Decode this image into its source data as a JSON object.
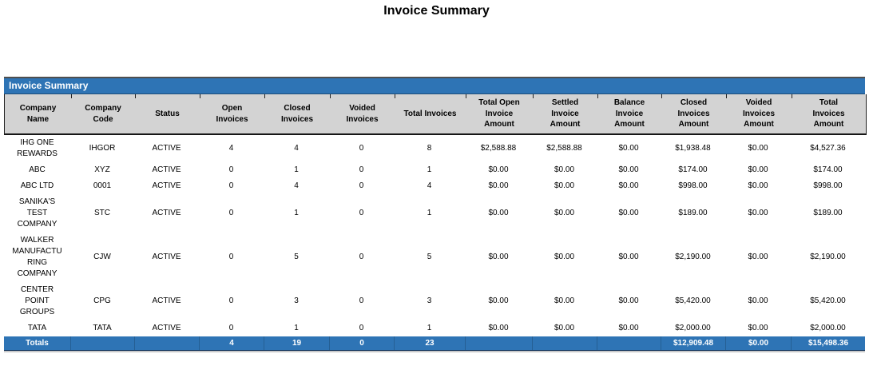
{
  "page_title": "Invoice Summary",
  "colors": {
    "accent_blue": "#2E74B5",
    "header_gray": "#D3D3D3",
    "totals_text": "#FFFFFF"
  },
  "table": {
    "section_title": "Invoice Summary",
    "columns": [
      "Company Name",
      "Company Code",
      "Status",
      "Open Invoices",
      "Closed Invoices",
      "Voided Invoices",
      "Total Invoices",
      "Total Open Invoice Amount",
      "Settled Invoice Amount",
      "Balance Invoice Amount",
      "Closed Invoices Amount",
      "Voided Invoices Amount",
      "Total Invoices Amount"
    ],
    "rows": [
      [
        "IHG ONE REWARDS",
        "IHGOR",
        "ACTIVE",
        "4",
        "4",
        "0",
        "8",
        "$2,588.88",
        "$2,588.88",
        "$0.00",
        "$1,938.48",
        "$0.00",
        "$4,527.36"
      ],
      [
        "ABC",
        "XYZ",
        "ACTIVE",
        "0",
        "1",
        "0",
        "1",
        "$0.00",
        "$0.00",
        "$0.00",
        "$174.00",
        "$0.00",
        "$174.00"
      ],
      [
        "ABC LTD",
        "0001",
        "ACTIVE",
        "0",
        "4",
        "0",
        "4",
        "$0.00",
        "$0.00",
        "$0.00",
        "$998.00",
        "$0.00",
        "$998.00"
      ],
      [
        "SANIKA'S TEST COMPANY",
        "STC",
        "ACTIVE",
        "0",
        "1",
        "0",
        "1",
        "$0.00",
        "$0.00",
        "$0.00",
        "$189.00",
        "$0.00",
        "$189.00"
      ],
      [
        "WALKER MANUFACTURING COMPANY",
        "CJW",
        "ACTIVE",
        "0",
        "5",
        "0",
        "5",
        "$0.00",
        "$0.00",
        "$0.00",
        "$2,190.00",
        "$0.00",
        "$2,190.00"
      ],
      [
        "CENTER POINT GROUPS",
        "CPG",
        "ACTIVE",
        "0",
        "3",
        "0",
        "3",
        "$0.00",
        "$0.00",
        "$0.00",
        "$5,420.00",
        "$0.00",
        "$5,420.00"
      ],
      [
        "TATA",
        "TATA",
        "ACTIVE",
        "0",
        "1",
        "0",
        "1",
        "$0.00",
        "$0.00",
        "$0.00",
        "$2,000.00",
        "$0.00",
        "$2,000.00"
      ]
    ],
    "totals": {
      "cells": [
        "Totals",
        "",
        "",
        "4",
        "19",
        "0",
        "23",
        "",
        "",
        "",
        "$12,909.48",
        "$0.00",
        "$15,498.36"
      ]
    }
  }
}
